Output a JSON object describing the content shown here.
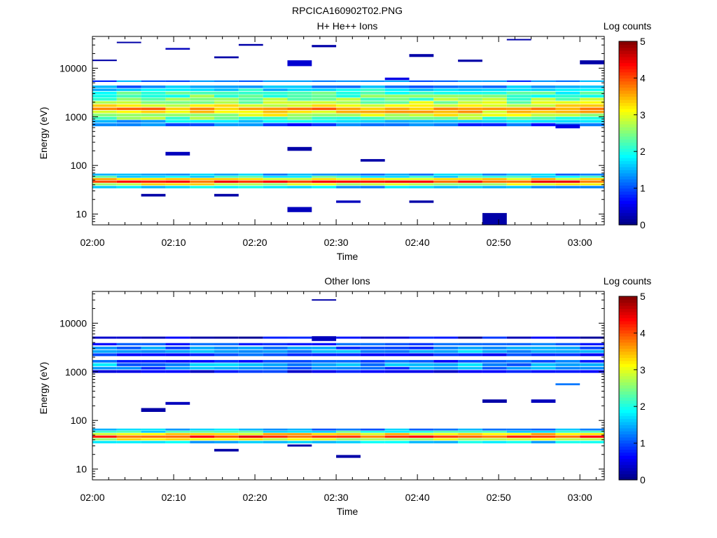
{
  "figure_title": "RPCICA160902T02.PNG",
  "panels": [
    {
      "id": "h-he-ions",
      "title": "H+ He++ Ions",
      "ylabel": "Energy (eV)",
      "xlabel": "Time",
      "colorbar_label": "Log counts"
    },
    {
      "id": "other-ions",
      "title": "Other Ions",
      "ylabel": "Energy (eV)",
      "xlabel": "Time",
      "colorbar_label": "Log counts"
    }
  ],
  "chart_data": [
    {
      "type": "heatmap",
      "title": "H+ He++ Ions",
      "xlabel": "Time",
      "ylabel": "Energy (eV)",
      "y_scale": "log",
      "ylim": [
        6,
        45000
      ],
      "xlim": [
        "02:00",
        "03:03"
      ],
      "x_ticks": [
        "02:00",
        "02:10",
        "02:20",
        "02:30",
        "02:40",
        "02:50",
        "03:00"
      ],
      "y_ticks": [
        10,
        100,
        1000,
        10000
      ],
      "y_tick_labels": [
        "10",
        "100",
        "1000",
        "10000"
      ],
      "colorbar": {
        "label": "Log counts",
        "range": [
          0,
          5
        ],
        "ticks": [
          "0",
          "1",
          "2",
          "3",
          "4",
          "5"
        ],
        "colormap": "jet"
      },
      "time_bins": [
        "02:00",
        "02:03",
        "02:06",
        "02:09",
        "02:12",
        "02:15",
        "02:18",
        "02:21",
        "02:24",
        "02:27",
        "02:30",
        "02:33",
        "02:36",
        "02:39",
        "02:42",
        "02:45",
        "02:48",
        "02:51",
        "02:54",
        "02:57",
        "03:00"
      ],
      "bands": [
        {
          "e_min": 5200,
          "e_max": 5600,
          "level": 1.2
        },
        {
          "e_min": 3900,
          "e_max": 4400,
          "level": 1.3
        },
        {
          "e_min": 3400,
          "e_max": 3800,
          "level": 1.8
        },
        {
          "e_min": 2900,
          "e_max": 3300,
          "level": 2.1
        },
        {
          "e_min": 2500,
          "e_max": 2850,
          "level": 2.3
        },
        {
          "e_min": 2150,
          "e_max": 2450,
          "level": 2.5
        },
        {
          "e_min": 1850,
          "e_max": 2100,
          "level": 2.7
        },
        {
          "e_min": 1600,
          "e_max": 1800,
          "level": 3.0
        },
        {
          "e_min": 1380,
          "e_max": 1550,
          "level": 3.6
        },
        {
          "e_min": 1190,
          "e_max": 1340,
          "level": 3.3
        },
        {
          "e_min": 1020,
          "e_max": 1160,
          "level": 2.9
        },
        {
          "e_min": 880,
          "e_max": 1000,
          "level": 2.4
        },
        {
          "e_min": 760,
          "e_max": 860,
          "level": 1.6
        },
        {
          "e_min": 640,
          "e_max": 740,
          "level": 1.0
        },
        {
          "e_min": 62,
          "e_max": 68,
          "level": 1.4
        },
        {
          "e_min": 56,
          "e_max": 61,
          "level": 2.0
        },
        {
          "e_min": 50,
          "e_max": 55,
          "level": 3.2
        },
        {
          "e_min": 44,
          "e_max": 49,
          "level": 4.1
        },
        {
          "e_min": 39,
          "e_max": 43,
          "level": 3.0
        },
        {
          "e_min": 34,
          "e_max": 38,
          "level": 1.6
        }
      ],
      "sparse_pixels": [
        {
          "time": "02:00",
          "e_min": 14000,
          "e_max": 15000,
          "level": 0.2
        },
        {
          "time": "02:03",
          "e_min": 33000,
          "e_max": 35000,
          "level": 0.2
        },
        {
          "time": "02:09",
          "e_min": 160,
          "e_max": 190,
          "level": 0.3
        },
        {
          "time": "02:09",
          "e_min": 24000,
          "e_max": 26000,
          "level": 0.3
        },
        {
          "time": "02:15",
          "e_min": 16000,
          "e_max": 17500,
          "level": 0.2
        },
        {
          "time": "02:18",
          "e_min": 29000,
          "e_max": 31500,
          "level": 0.2
        },
        {
          "time": "02:24",
          "e_min": 11000,
          "e_max": 14500,
          "level": 0.4
        },
        {
          "time": "02:24",
          "e_min": 200,
          "e_max": 240,
          "level": 0.2
        },
        {
          "time": "02:27",
          "e_min": 27000,
          "e_max": 30000,
          "level": 0.2
        },
        {
          "time": "02:33",
          "e_min": 120,
          "e_max": 135,
          "level": 0.2
        },
        {
          "time": "02:36",
          "e_min": 5700,
          "e_max": 6400,
          "level": 0.5
        },
        {
          "time": "02:39",
          "e_min": 17000,
          "e_max": 19500,
          "level": 0.2
        },
        {
          "time": "02:45",
          "e_min": 13500,
          "e_max": 15000,
          "level": 0.2
        },
        {
          "time": "02:51",
          "e_min": 38000,
          "e_max": 40000,
          "level": 0.2
        },
        {
          "time": "02:57",
          "e_min": 580,
          "e_max": 700,
          "level": 0.5
        },
        {
          "time": "03:00",
          "e_min": 12000,
          "e_max": 14500,
          "level": 0.2
        },
        {
          "time": "02:06",
          "e_min": 23,
          "e_max": 26,
          "level": 0.2
        },
        {
          "time": "02:15",
          "e_min": 23,
          "e_max": 26,
          "level": 0.2
        },
        {
          "time": "02:24",
          "e_min": 11,
          "e_max": 14,
          "level": 0.3
        },
        {
          "time": "02:30",
          "e_min": 17,
          "e_max": 19,
          "level": 0.3
        },
        {
          "time": "02:39",
          "e_min": 17,
          "e_max": 19,
          "level": 0.2
        },
        {
          "time": "02:48",
          "e_min": 6,
          "e_max": 10.5,
          "level": 0.2
        }
      ]
    },
    {
      "type": "heatmap",
      "title": "Other Ions",
      "xlabel": "Time",
      "ylabel": "Energy (eV)",
      "y_scale": "log",
      "ylim": [
        6,
        45000
      ],
      "xlim": [
        "02:00",
        "03:03"
      ],
      "x_ticks": [
        "02:00",
        "02:10",
        "02:20",
        "02:30",
        "02:40",
        "02:50",
        "03:00"
      ],
      "y_ticks": [
        10,
        100,
        1000,
        10000
      ],
      "y_tick_labels": [
        "10",
        "100",
        "1000",
        "10000"
      ],
      "colorbar": {
        "label": "Log counts",
        "range": [
          0,
          5
        ],
        "ticks": [
          "0",
          "1",
          "2",
          "3",
          "4",
          "5"
        ],
        "colormap": "jet"
      },
      "time_bins": [
        "02:00",
        "02:03",
        "02:06",
        "02:09",
        "02:12",
        "02:15",
        "02:18",
        "02:21",
        "02:24",
        "02:27",
        "02:30",
        "02:33",
        "02:36",
        "02:39",
        "02:42",
        "02:45",
        "02:48",
        "02:51",
        "02:54",
        "02:57",
        "03:00"
      ],
      "bands": [
        {
          "e_min": 4800,
          "e_max": 5300,
          "level": 0.5
        },
        {
          "e_min": 3500,
          "e_max": 3900,
          "level": 0.9
        },
        {
          "e_min": 2900,
          "e_max": 3300,
          "level": 1.2
        },
        {
          "e_min": 2450,
          "e_max": 2800,
          "level": 1.4
        },
        {
          "e_min": 2100,
          "e_max": 2400,
          "level": 0.9
        },
        {
          "e_min": 1550,
          "e_max": 1750,
          "level": 0.9
        },
        {
          "e_min": 1300,
          "e_max": 1500,
          "level": 1.4
        },
        {
          "e_min": 1120,
          "e_max": 1260,
          "level": 1.2
        },
        {
          "e_min": 950,
          "e_max": 1080,
          "level": 0.7
        },
        {
          "e_min": 62,
          "e_max": 68,
          "level": 1.4
        },
        {
          "e_min": 56,
          "e_max": 61,
          "level": 2.0
        },
        {
          "e_min": 50,
          "e_max": 55,
          "level": 3.2
        },
        {
          "e_min": 44,
          "e_max": 49,
          "level": 4.1
        },
        {
          "e_min": 39,
          "e_max": 43,
          "level": 3.0
        },
        {
          "e_min": 34,
          "e_max": 38,
          "level": 1.6
        }
      ],
      "sparse_pixels": [
        {
          "time": "02:06",
          "e_min": 150,
          "e_max": 180,
          "level": 0.2
        },
        {
          "time": "02:09",
          "e_min": 210,
          "e_max": 240,
          "level": 0.3
        },
        {
          "time": "02:27",
          "e_min": 29000,
          "e_max": 31000,
          "level": 0.2
        },
        {
          "time": "02:27",
          "e_min": 4300,
          "e_max": 5400,
          "level": 0.3
        },
        {
          "time": "02:15",
          "e_min": 23,
          "e_max": 26,
          "level": 0.2
        },
        {
          "time": "02:24",
          "e_min": 29,
          "e_max": 32,
          "level": 0.2
        },
        {
          "time": "02:30",
          "e_min": 17,
          "e_max": 19.5,
          "level": 0.2
        },
        {
          "time": "02:57",
          "e_min": 530,
          "e_max": 580,
          "level": 1.2
        },
        {
          "time": "02:54",
          "e_min": 230,
          "e_max": 270,
          "level": 0.3
        },
        {
          "time": "02:48",
          "e_min": 230,
          "e_max": 270,
          "level": 0.2
        }
      ]
    }
  ]
}
